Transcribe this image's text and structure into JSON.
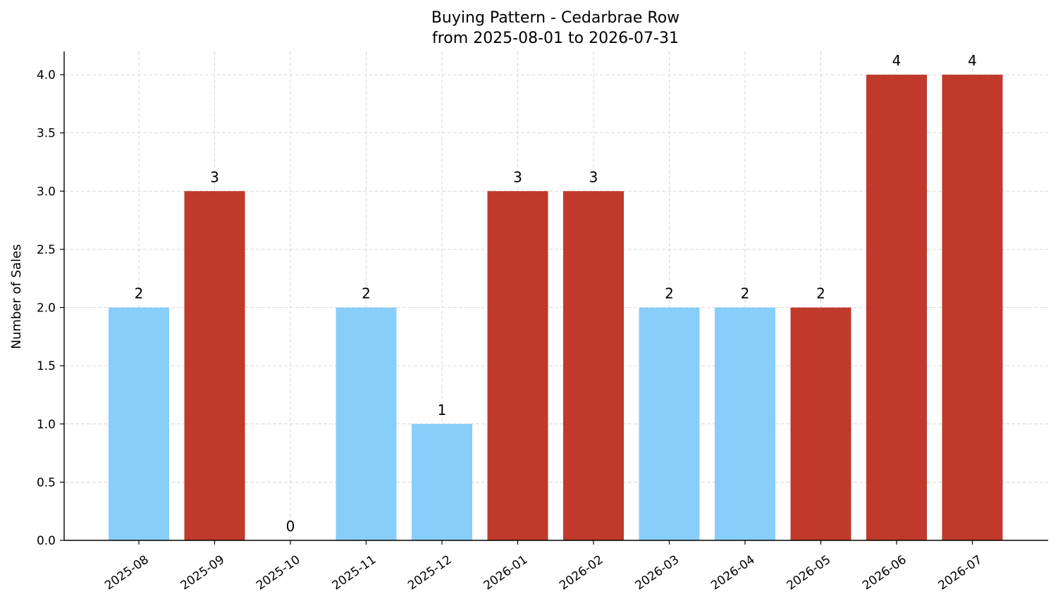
{
  "title_line1": "Buying Pattern - Cedarbrae Row",
  "title_line2": "from 2025-08-01 to 2026-07-31",
  "chart_data": {
    "type": "bar",
    "title": "Buying Pattern - Cedarbrae Row\nfrom 2025-08-01 to 2026-07-31",
    "xlabel": "",
    "ylabel": "Number of Sales",
    "categories": [
      "2025-08",
      "2025-09",
      "2025-10",
      "2025-11",
      "2025-12",
      "2026-01",
      "2026-02",
      "2026-03",
      "2026-04",
      "2026-05",
      "2026-06",
      "2026-07"
    ],
    "values": [
      2,
      3,
      0,
      2,
      1,
      3,
      3,
      2,
      2,
      2,
      4,
      4
    ],
    "bar_colors": [
      "#87CEFA",
      "#C0392B",
      "#87CEFA",
      "#87CEFA",
      "#87CEFA",
      "#C0392B",
      "#C0392B",
      "#87CEFA",
      "#87CEFA",
      "#C0392B",
      "#C0392B",
      "#C0392B"
    ],
    "yticks": [
      "0.0",
      "0.5",
      "1.0",
      "1.5",
      "2.0",
      "2.5",
      "3.0",
      "3.5",
      "4.0"
    ],
    "ylim": [
      0,
      4.2
    ],
    "grid": true,
    "data_labels": true
  }
}
